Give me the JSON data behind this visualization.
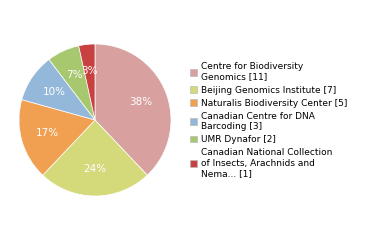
{
  "labels": [
    "Centre for Biodiversity\nGenomics [11]",
    "Beijing Genomics Institute [7]",
    "Naturalis Biodiversity Center [5]",
    "Canadian Centre for DNA\nBarcoding [3]",
    "UMR Dynafor [2]",
    "Canadian National Collection\nof Insects, Arachnids and\nNema... [1]"
  ],
  "values": [
    11,
    7,
    5,
    3,
    2,
    1
  ],
  "colors": [
    "#d9a0a0",
    "#d4d97a",
    "#f0a050",
    "#94b8d9",
    "#a8c870",
    "#c84040"
  ],
  "startangle": 90,
  "legend_fontsize": 6.5,
  "autopct_fontsize": 7.5,
  "background_color": "#ffffff"
}
